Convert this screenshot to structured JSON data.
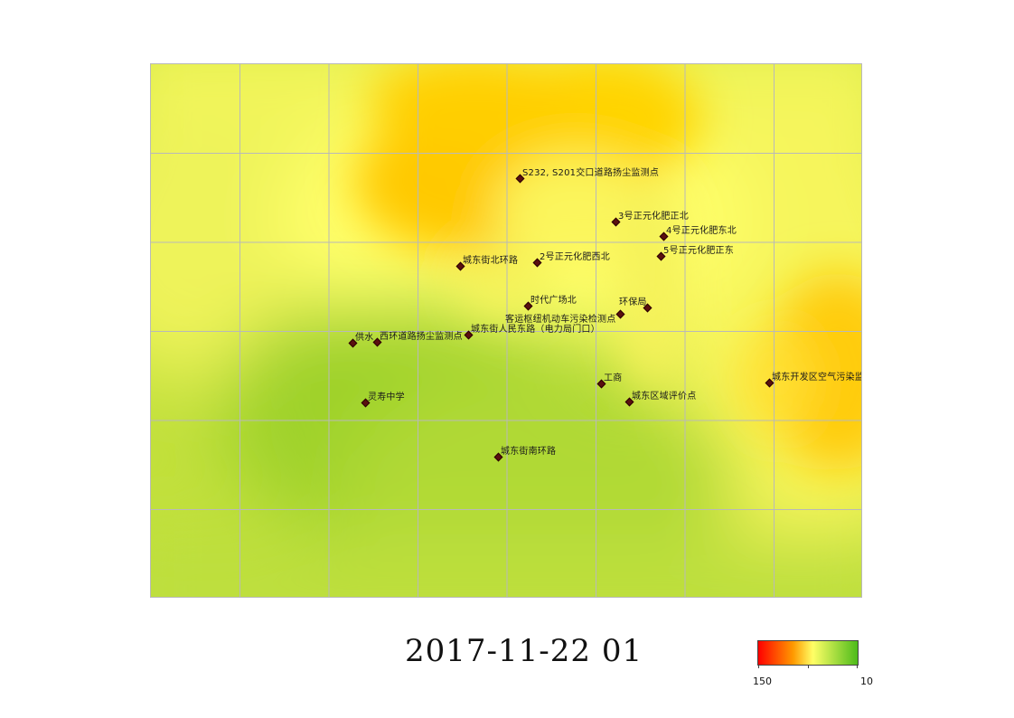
{
  "map": {
    "stations": [
      {
        "id": "s1",
        "name": "S232, S201交口道路扬尘监测点"
      },
      {
        "id": "s2",
        "name": "3号正元化肥正北"
      },
      {
        "id": "s3",
        "name": "4号正元化肥东北"
      },
      {
        "id": "s4",
        "name": "5号正元化肥正东"
      },
      {
        "id": "s5",
        "name": "城东街北环路"
      },
      {
        "id": "s6",
        "name": "2号正元化肥西北"
      },
      {
        "id": "s7",
        "name": "时代广场北"
      },
      {
        "id": "s8",
        "name": "环保局"
      },
      {
        "id": "s9",
        "name": "客运枢纽机动车污染检测点"
      },
      {
        "id": "s10",
        "name": "城东街人民东路（电力局门口）"
      },
      {
        "id": "s11",
        "name": "供水"
      },
      {
        "id": "s12",
        "name": "西环道路扬尘监测点"
      },
      {
        "id": "s13",
        "name": "工商"
      },
      {
        "id": "s14",
        "name": "城东开发区空气污染监测点"
      },
      {
        "id": "s15",
        "name": "城东区域评价点"
      },
      {
        "id": "s16",
        "name": "灵寿中学"
      },
      {
        "id": "s17",
        "name": "城东街南环路"
      }
    ]
  },
  "timestamp": "2017-11-22 01",
  "legend": {
    "min_label": "150",
    "max_label": "10",
    "colors": [
      "#ff0000",
      "#ff9900",
      "#ffff66",
      "#4dbb1a"
    ]
  },
  "colors": {
    "background_green": "#b8dc3a",
    "green_center": "#a3d52e",
    "yellow": "#f6f75e",
    "orange": "#ffc800",
    "grid": "#b9b9b9"
  }
}
